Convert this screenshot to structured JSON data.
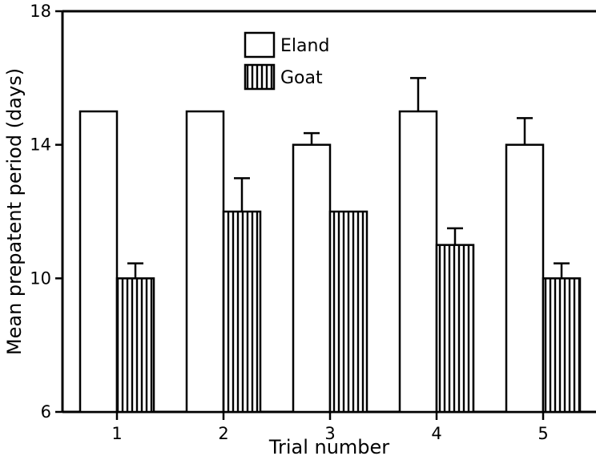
{
  "chart_data": {
    "type": "bar",
    "title": "",
    "xlabel": "Trial number",
    "ylabel": "Mean prepatent period (days)",
    "ylim": [
      6,
      18
    ],
    "yticks": [
      6,
      10,
      14,
      18
    ],
    "categories": [
      "1",
      "2",
      "3",
      "4",
      "5"
    ],
    "series": [
      {
        "name": "Eland",
        "values": [
          15,
          15,
          14,
          15,
          14
        ],
        "errors": [
          0,
          0,
          0.35,
          1.0,
          0.8
        ],
        "fill": "plain"
      },
      {
        "name": "Goat",
        "values": [
          10,
          12,
          12,
          11,
          10
        ],
        "errors": [
          0.45,
          1.0,
          0,
          0.5,
          0.45
        ],
        "fill": "vertical-hatch"
      }
    ],
    "legend_position": "top-center",
    "grid": false
  }
}
